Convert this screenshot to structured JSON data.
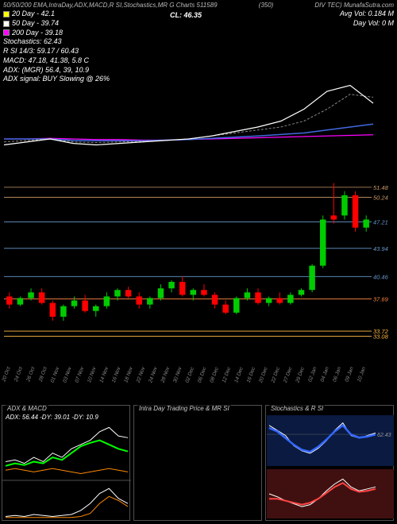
{
  "header": {
    "title_left": "50/50/200 EMA,IntraDay,ADX,MACD,R   SI,Stochastics,MR       G Charts 511589",
    "title_center": "(350)",
    "title_right_brand": "DIV TEC) MunafaSutra.com",
    "cl": "CL: 46.35",
    "avg_vol": "Avg Vol: 0.184   M",
    "day_vol": "Day Vol: 0   M",
    "lines": {
      "ema20": {
        "label": "20 Day - 42.1",
        "color": "#ffff00"
      },
      "ema50": {
        "label": "50 Day - 39.74",
        "color": "#ffffff"
      },
      "ema200": {
        "label": "200 Day - 39.18",
        "color": "#ff00ff"
      },
      "stoch": {
        "label": "Stochastics: 62.43",
        "color": "#ffffff"
      },
      "rsi": {
        "label": "R   SI 14/3: 59.17 / 60.43",
        "color": "#ffffff"
      },
      "macd": {
        "label": "MACD: 47.18, 41.38, 5.8 C",
        "color": "#ffffff"
      },
      "adx": {
        "label": "ADX:                        (MGR) 56.4,  39,  10.9",
        "color": "#ffffff"
      },
      "adx_signal": {
        "label": "ADX signal:                               BUY Slowing @ 26%",
        "color": "#ffffff"
      }
    }
  },
  "ema_panel": {
    "type": "line",
    "bg": "#000000",
    "height": 80,
    "series": [
      {
        "name": "ema200",
        "color": "#ff00ff",
        "width": 1.2,
        "y": [
          40,
          40,
          40.2,
          40,
          39.8,
          39.8,
          39.6,
          39.6,
          39.8,
          40,
          40.2,
          40.4,
          40.6,
          40.8,
          41,
          41.2,
          41.4
        ]
      },
      {
        "name": "ema50",
        "color": "#4169e1",
        "width": 1.5,
        "y": [
          40,
          40,
          40,
          39.5,
          39.4,
          39.4,
          39.4,
          39.6,
          39.8,
          40.2,
          40.6,
          41,
          41.5,
          42,
          43,
          44,
          45
        ]
      },
      {
        "name": "ema20",
        "color": "#888888",
        "width": 1,
        "dash": "3,2",
        "y": [
          39,
          39.5,
          40,
          39,
          38.8,
          39,
          39.2,
          39.5,
          40,
          41,
          42,
          43,
          44,
          46,
          50,
          55,
          54
        ]
      },
      {
        "name": "price",
        "color": "#ffffff",
        "width": 1.2,
        "y": [
          38,
          39,
          40,
          38.5,
          38,
          38.5,
          39,
          39.5,
          40,
          41,
          42.5,
          44,
          46,
          50,
          56,
          58,
          52
        ]
      }
    ],
    "y_baseline": 40,
    "y_range": [
      36,
      60
    ]
  },
  "candle_panel": {
    "type": "candlestick",
    "y_levels": [
      {
        "v": "51.48",
        "color": "#cc9966"
      },
      {
        "v": "50.24",
        "color": "#cc9966"
      },
      {
        "v": "47.21",
        "color": "#6699cc"
      },
      {
        "v": "43.94",
        "color": "#6699cc"
      },
      {
        "v": "40.46",
        "color": "#6699cc"
      },
      {
        "v": "37.69",
        "color": "#ff8844"
      },
      {
        "v": "33.72",
        "color": "#ffbb44"
      },
      {
        "v": "33.08",
        "color": "#ffbb44"
      }
    ],
    "ylim": [
      30,
      55
    ],
    "candles": [
      {
        "o": 38,
        "h": 38.5,
        "l": 36.5,
        "c": 37,
        "col": "r"
      },
      {
        "o": 37,
        "h": 38,
        "l": 36.8,
        "c": 37.8,
        "col": "g"
      },
      {
        "o": 37.8,
        "h": 39,
        "l": 37.5,
        "c": 38.5,
        "col": "g"
      },
      {
        "o": 38.5,
        "h": 39,
        "l": 37,
        "c": 37.2,
        "col": "r"
      },
      {
        "o": 37.2,
        "h": 37.5,
        "l": 35,
        "c": 35.5,
        "col": "r"
      },
      {
        "o": 35.5,
        "h": 37,
        "l": 35,
        "c": 36.8,
        "col": "g"
      },
      {
        "o": 36.8,
        "h": 38,
        "l": 36.5,
        "c": 37.5,
        "col": "g"
      },
      {
        "o": 37.5,
        "h": 38.2,
        "l": 36,
        "c": 36.2,
        "col": "r"
      },
      {
        "o": 36.2,
        "h": 37,
        "l": 35.5,
        "c": 36.8,
        "col": "g"
      },
      {
        "o": 36.8,
        "h": 38.5,
        "l": 36.5,
        "c": 38,
        "col": "g"
      },
      {
        "o": 38,
        "h": 39,
        "l": 37.5,
        "c": 38.8,
        "col": "g"
      },
      {
        "o": 38.8,
        "h": 39.2,
        "l": 37.8,
        "c": 38,
        "col": "r"
      },
      {
        "o": 38,
        "h": 38.5,
        "l": 36.5,
        "c": 37,
        "col": "r"
      },
      {
        "o": 37,
        "h": 38,
        "l": 36.5,
        "c": 37.8,
        "col": "g"
      },
      {
        "o": 37.8,
        "h": 39.5,
        "l": 37.5,
        "c": 39,
        "col": "g"
      },
      {
        "o": 39,
        "h": 40,
        "l": 38.5,
        "c": 39.8,
        "col": "g"
      },
      {
        "o": 39.8,
        "h": 40.5,
        "l": 38,
        "c": 38.2,
        "col": "r"
      },
      {
        "o": 38.2,
        "h": 39,
        "l": 37.5,
        "c": 38.8,
        "col": "g"
      },
      {
        "o": 38.8,
        "h": 39.5,
        "l": 38,
        "c": 38.2,
        "col": "r"
      },
      {
        "o": 38.2,
        "h": 38.5,
        "l": 36.5,
        "c": 37,
        "col": "r"
      },
      {
        "o": 37,
        "h": 37.5,
        "l": 35.8,
        "c": 36,
        "col": "r"
      },
      {
        "o": 36,
        "h": 38,
        "l": 35.8,
        "c": 37.8,
        "col": "g"
      },
      {
        "o": 37.8,
        "h": 39,
        "l": 37.5,
        "c": 38.5,
        "col": "g"
      },
      {
        "o": 38.5,
        "h": 39,
        "l": 37,
        "c": 37.2,
        "col": "r"
      },
      {
        "o": 37.2,
        "h": 38,
        "l": 36.8,
        "c": 37.8,
        "col": "g"
      },
      {
        "o": 37.8,
        "h": 38.5,
        "l": 37,
        "c": 37.2,
        "col": "r"
      },
      {
        "o": 37.2,
        "h": 38.5,
        "l": 37,
        "c": 38.2,
        "col": "g"
      },
      {
        "o": 38.2,
        "h": 39,
        "l": 38,
        "c": 38.8,
        "col": "g"
      },
      {
        "o": 38.8,
        "h": 42,
        "l": 38.5,
        "c": 41.8,
        "col": "g"
      },
      {
        "o": 41.8,
        "h": 48,
        "l": 41.5,
        "c": 47.5,
        "col": "g"
      },
      {
        "o": 47.5,
        "h": 52,
        "l": 47,
        "c": 48,
        "col": "r"
      },
      {
        "o": 48,
        "h": 51,
        "l": 47.5,
        "c": 50.5,
        "col": "g"
      },
      {
        "o": 50.5,
        "h": 51,
        "l": 46,
        "c": 46.5,
        "col": "r"
      },
      {
        "o": 46.5,
        "h": 48,
        "l": 46,
        "c": 47.5,
        "col": "g"
      }
    ],
    "dates": [
      "20 Oct",
      "24 Oct",
      "26 Oct",
      "28 Oct",
      "01 Nov",
      "03 Nov",
      "07 Nov",
      "10 Nov",
      "14 Nov",
      "16 Nov",
      "18 Nov",
      "22 Nov",
      "24 Nov",
      "28 Nov",
      "30 Nov",
      "02 Dec",
      "06 Dec",
      "08 Dec",
      "12 Dec",
      "14 Dec",
      "16 Dec",
      "20 Dec",
      "22 Dec",
      "27 Dec",
      "29 Dec",
      "02 Jan",
      "04 Jan",
      "06 Jan",
      "09 Jan",
      "10 Jan"
    ]
  },
  "adx_panel": {
    "title": "ADX  & MACD",
    "stat": "ADX: 56.44  -DY: 39.01 -DY: 10.9",
    "upper": {
      "series": [
        {
          "color": "#ffffff",
          "y": [
            30,
            32,
            28,
            35,
            30,
            40,
            35,
            45,
            50,
            55,
            65,
            70,
            60,
            58
          ]
        },
        {
          "color": "#00ff00",
          "width": 2,
          "y": [
            25,
            28,
            26,
            30,
            28,
            35,
            32,
            40,
            48,
            52,
            55,
            50,
            45,
            42
          ]
        },
        {
          "color": "#ff8800",
          "y": [
            20,
            22,
            20,
            18,
            20,
            22,
            20,
            18,
            16,
            18,
            20,
            22,
            20,
            18
          ]
        }
      ],
      "ylim": [
        10,
        75
      ]
    },
    "lower": {
      "series": [
        {
          "color": "#ffffff",
          "y": [
            2,
            3,
            2,
            4,
            3,
            2,
            3,
            4,
            8,
            15,
            25,
            30,
            20,
            15
          ]
        },
        {
          "color": "#ff8800",
          "y": [
            1,
            1,
            1,
            1,
            1,
            1,
            1,
            1,
            2,
            5,
            15,
            22,
            18,
            12
          ]
        }
      ],
      "ylim": [
        0,
        35
      ]
    }
  },
  "intraday_panel": {
    "title": "Intra Day Trading Price  & MR       SI"
  },
  "stoch_panel": {
    "title": "Stochastics & R       SI",
    "upper": {
      "bg": "#0a1a40",
      "ref": "62.43",
      "series": [
        {
          "color": "#ffffff",
          "width": 1,
          "y": [
            80,
            70,
            60,
            40,
            30,
            25,
            35,
            50,
            70,
            85,
            60,
            55,
            60,
            65
          ]
        },
        {
          "color": "#3366ff",
          "width": 2.5,
          "y": [
            75,
            68,
            55,
            42,
            32,
            28,
            38,
            52,
            68,
            80,
            62,
            56,
            58,
            62
          ]
        }
      ],
      "ylim": [
        0,
        100
      ]
    },
    "lower": {
      "bg": "#401010",
      "series": [
        {
          "color": "#ffffff",
          "width": 1,
          "y": [
            55,
            52,
            48,
            45,
            42,
            44,
            50,
            58,
            65,
            70,
            62,
            58,
            60,
            62
          ]
        },
        {
          "color": "#ff4444",
          "width": 2,
          "y": [
            50,
            50,
            48,
            46,
            44,
            46,
            50,
            56,
            62,
            66,
            60,
            57,
            58,
            60
          ]
        }
      ],
      "ylim": [
        30,
        80
      ]
    }
  },
  "colors": {
    "up": "#00cc00",
    "down": "#ff0000",
    "wick": "#cccccc"
  }
}
